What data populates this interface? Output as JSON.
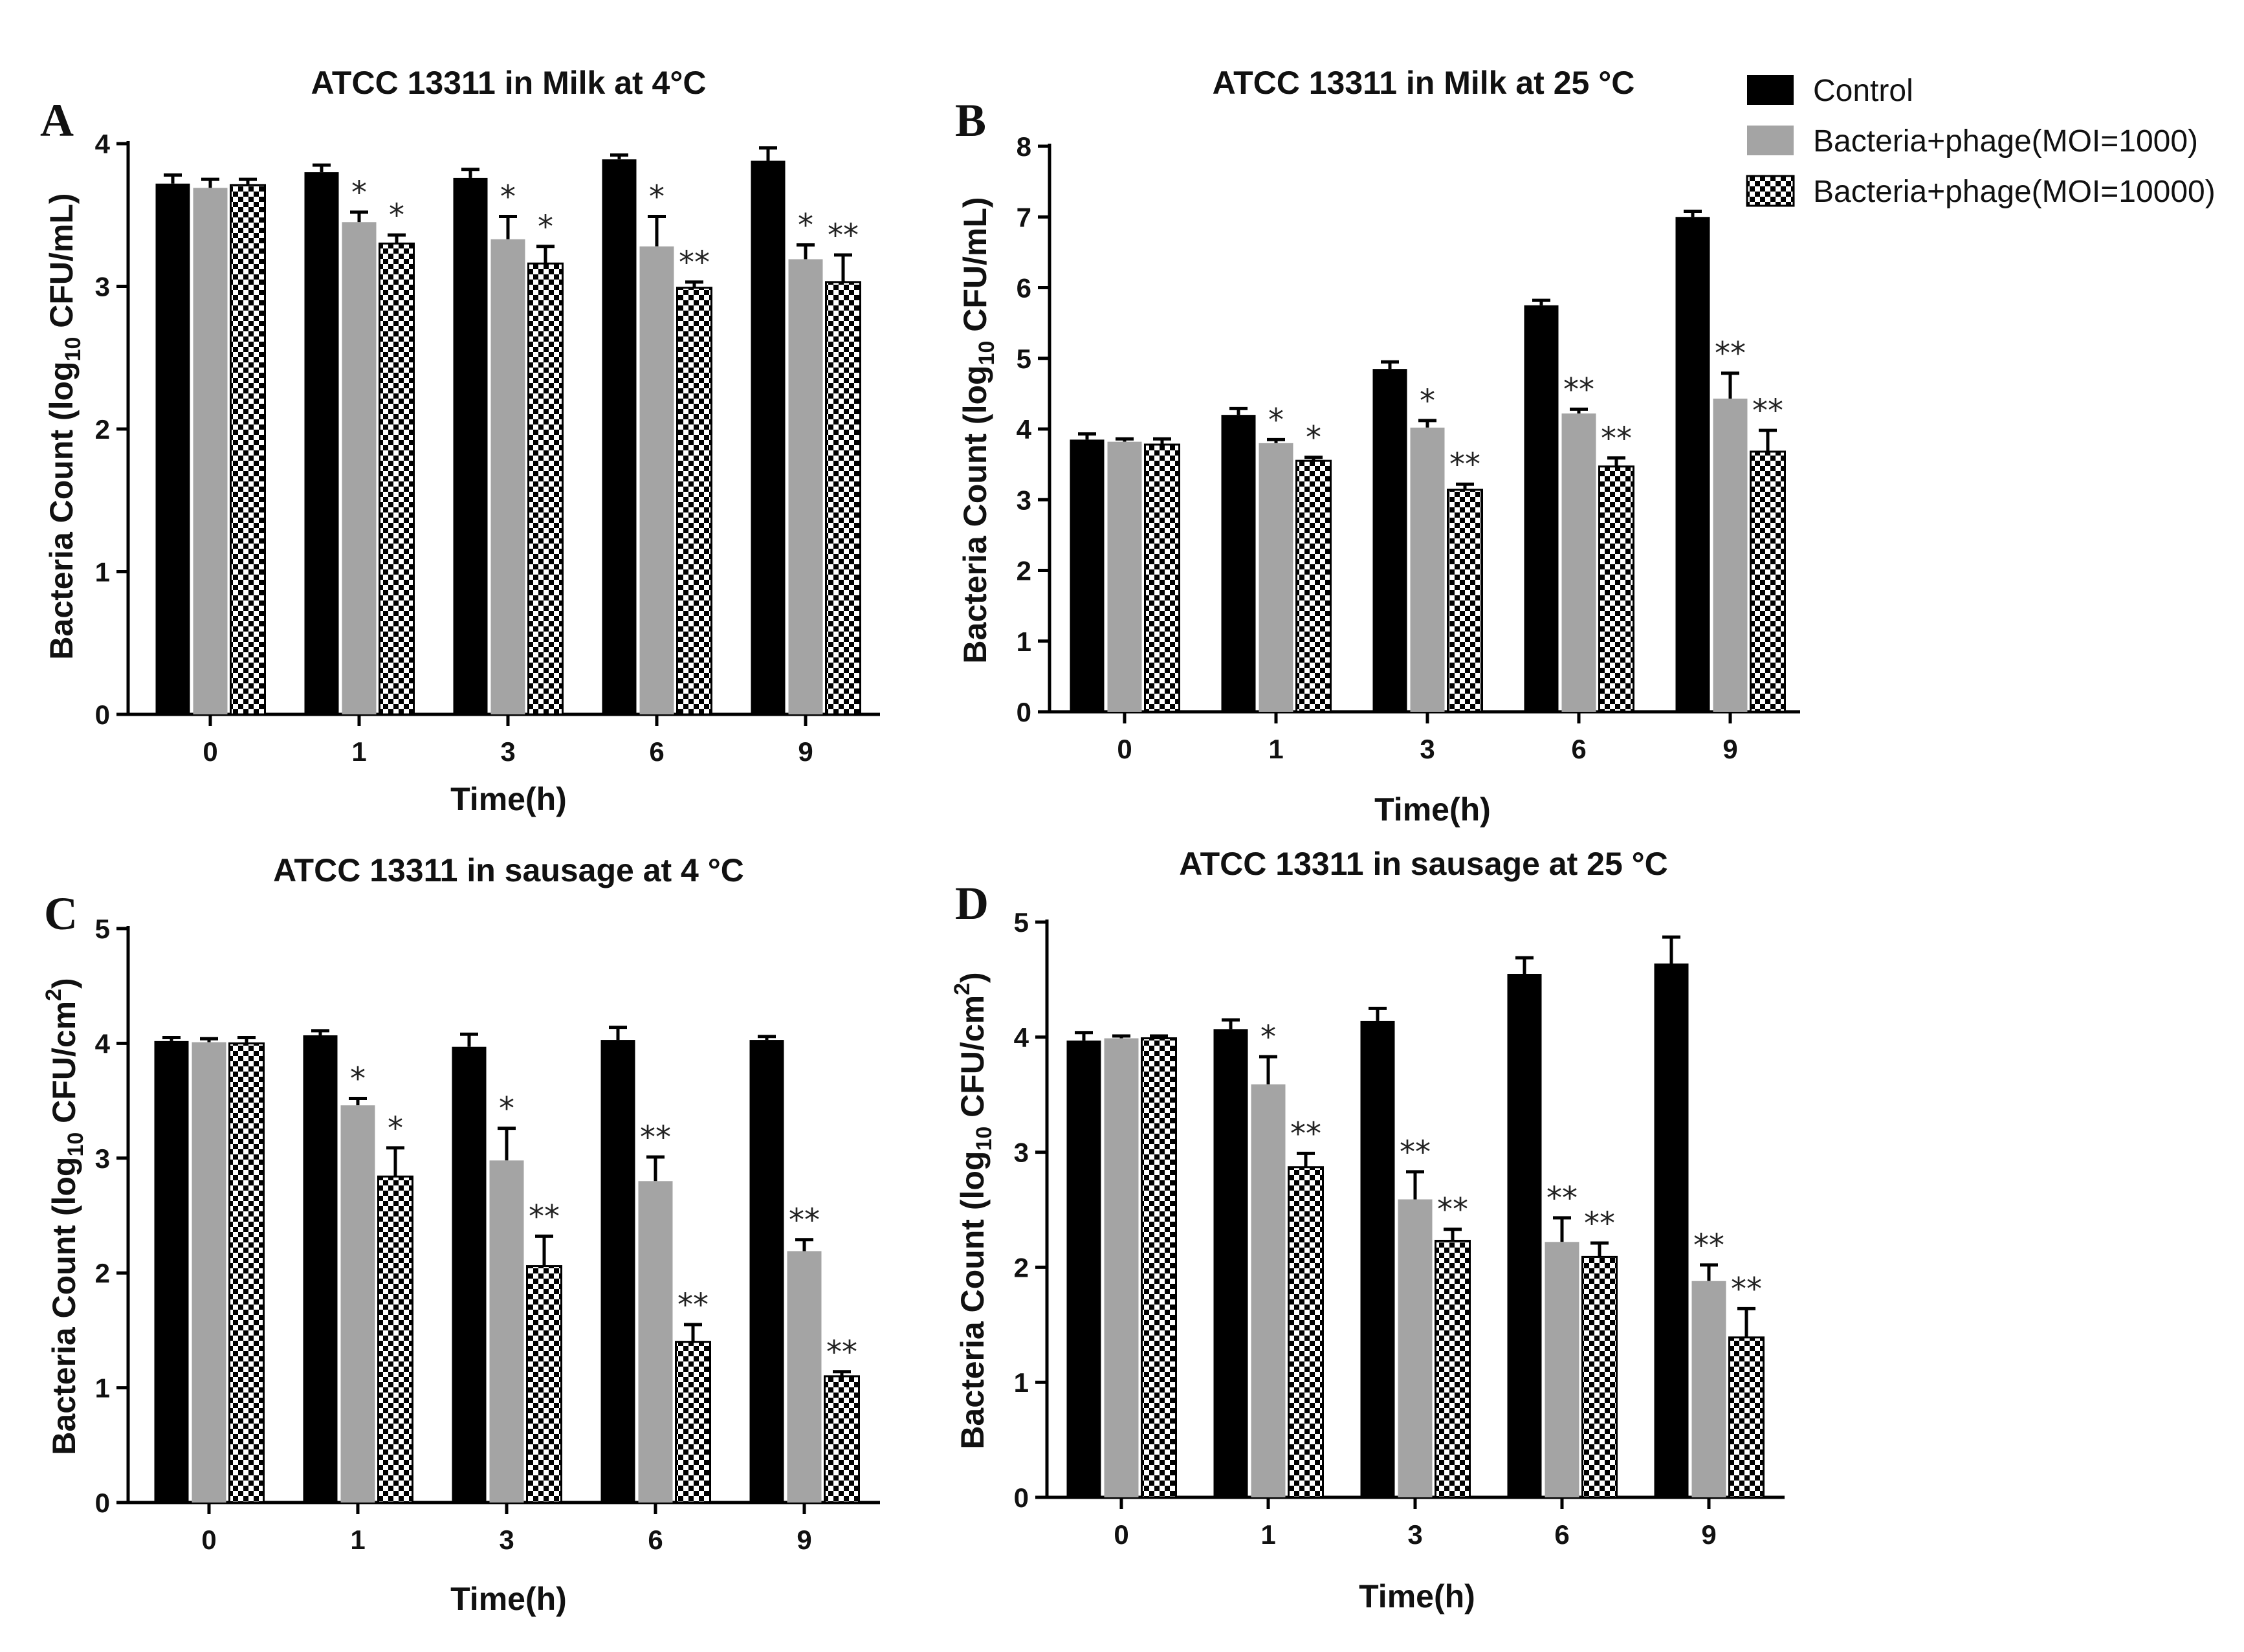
{
  "legend": {
    "series": [
      {
        "name": "Control",
        "fill": "#000000",
        "pattern": "solid"
      },
      {
        "name": "Bacteria+phage(MOI=1000)",
        "fill": "#a4a4a4",
        "pattern": "solid"
      },
      {
        "name": "Bacteria+phage(MOI=10000)",
        "fill": "#000000",
        "pattern": "checker"
      }
    ]
  },
  "chart_data": [
    {
      "panel": "A",
      "type": "bar",
      "title": "ATCC 13311 in Milk at 4°C",
      "xlabel": "Time(h)",
      "ylabel_pre": "Bacteria Count (log",
      "ylabel_sub": "10",
      "ylabel_post": " CFU/mL)",
      "categories": [
        "0",
        "1",
        "3",
        "6",
        "9"
      ],
      "ylim": [
        0,
        4
      ],
      "yticks": [
        "0",
        "1",
        "2",
        "3",
        "4"
      ],
      "series": [
        {
          "name": "Control",
          "values": [
            3.72,
            3.8,
            3.76,
            3.89,
            3.88
          ],
          "errors": [
            0.06,
            0.05,
            0.06,
            0.03,
            0.09
          ]
        },
        {
          "name": "Bacteria+phage(MOI=1000)",
          "values": [
            3.69,
            3.45,
            3.33,
            3.28,
            3.19
          ],
          "errors": [
            0.06,
            0.07,
            0.16,
            0.21,
            0.1
          ]
        },
        {
          "name": "Bacteria+phage(MOI=10000)",
          "values": [
            3.71,
            3.3,
            3.16,
            2.99,
            3.03
          ],
          "errors": [
            0.04,
            0.06,
            0.12,
            0.04,
            0.19
          ]
        }
      ],
      "significance": [
        [
          "",
          "*",
          "*",
          "*",
          "*"
        ],
        [
          "",
          "*",
          "*",
          "**",
          "**"
        ]
      ]
    },
    {
      "panel": "B",
      "type": "bar",
      "title": "ATCC 13311 in Milk at 25 °C",
      "xlabel": "Time(h)",
      "ylabel_pre": "Bacteria Count (log",
      "ylabel_sub": "10",
      "ylabel_post": " CFU/mL)",
      "categories": [
        "0",
        "1",
        "3",
        "6",
        "9"
      ],
      "ylim": [
        0,
        8
      ],
      "yticks": [
        "0",
        "1",
        "2",
        "3",
        "4",
        "5",
        "6",
        "7",
        "8"
      ],
      "series": [
        {
          "name": "Control",
          "values": [
            3.85,
            4.2,
            4.85,
            5.75,
            7.0
          ],
          "errors": [
            0.08,
            0.09,
            0.1,
            0.07,
            0.08
          ]
        },
        {
          "name": "Bacteria+phage(MOI=1000)",
          "values": [
            3.82,
            3.8,
            4.02,
            4.22,
            4.43
          ],
          "errors": [
            0.04,
            0.05,
            0.1,
            0.06,
            0.36
          ]
        },
        {
          "name": "Bacteria+phage(MOI=10000)",
          "values": [
            3.78,
            3.55,
            3.14,
            3.47,
            3.68
          ],
          "errors": [
            0.08,
            0.05,
            0.08,
            0.12,
            0.3
          ]
        }
      ],
      "significance": [
        [
          "",
          "*",
          "*",
          "**",
          "**"
        ],
        [
          "",
          "*",
          "**",
          "**",
          "**"
        ]
      ]
    },
    {
      "panel": "C",
      "type": "bar",
      "title": "ATCC 13311 in sausage at 4 °C",
      "xlabel": "Time(h)",
      "ylabel_pre": "Bacteria Count (log",
      "ylabel_sub": "10",
      "ylabel_post": " CFU/cm",
      "ylabel_sup": "2",
      "ylabel_end": ")",
      "categories": [
        "0",
        "1",
        "3",
        "6",
        "9"
      ],
      "ylim": [
        0,
        5
      ],
      "yticks": [
        "0",
        "1",
        "2",
        "3",
        "4",
        "5"
      ],
      "series": [
        {
          "name": "Control",
          "values": [
            4.02,
            4.07,
            3.97,
            4.03,
            4.03
          ],
          "errors": [
            0.03,
            0.04,
            0.11,
            0.11,
            0.03
          ]
        },
        {
          "name": "Bacteria+phage(MOI=1000)",
          "values": [
            4.01,
            3.46,
            2.98,
            2.8,
            2.19
          ],
          "errors": [
            0.03,
            0.06,
            0.28,
            0.21,
            0.1
          ]
        },
        {
          "name": "Bacteria+phage(MOI=10000)",
          "values": [
            4.0,
            2.84,
            2.06,
            1.4,
            1.1
          ],
          "errors": [
            0.05,
            0.25,
            0.26,
            0.15,
            0.04
          ]
        }
      ],
      "significance": [
        [
          "",
          "*",
          "*",
          "**",
          "**"
        ],
        [
          "",
          "*",
          "**",
          "**",
          "**"
        ]
      ]
    },
    {
      "panel": "D",
      "type": "bar",
      "title": "ATCC 13311 in sausage at 25 °C",
      "xlabel": "Time(h)",
      "ylabel_pre": "Bacteria Count (log",
      "ylabel_sub": "10",
      "ylabel_post": " CFU/cm",
      "ylabel_sup": "2",
      "ylabel_end": ")",
      "categories": [
        "0",
        "1",
        "3",
        "6",
        "9"
      ],
      "ylim": [
        0,
        5
      ],
      "yticks": [
        "0",
        "1",
        "2",
        "3",
        "4",
        "5"
      ],
      "series": [
        {
          "name": "Control",
          "values": [
            3.97,
            4.07,
            4.14,
            4.55,
            4.64
          ],
          "errors": [
            0.07,
            0.08,
            0.11,
            0.14,
            0.23
          ]
        },
        {
          "name": "Bacteria+phage(MOI=1000)",
          "values": [
            3.99,
            3.59,
            2.59,
            2.22,
            1.88
          ],
          "errors": [
            0.02,
            0.24,
            0.24,
            0.21,
            0.14
          ]
        },
        {
          "name": "Bacteria+phage(MOI=10000)",
          "values": [
            3.99,
            2.87,
            2.23,
            2.09,
            1.39
          ],
          "errors": [
            0.02,
            0.12,
            0.1,
            0.12,
            0.25
          ]
        }
      ],
      "significance": [
        [
          "",
          "*",
          "**",
          "**",
          "**"
        ],
        [
          "",
          "**",
          "**",
          "**",
          "**"
        ]
      ]
    }
  ]
}
